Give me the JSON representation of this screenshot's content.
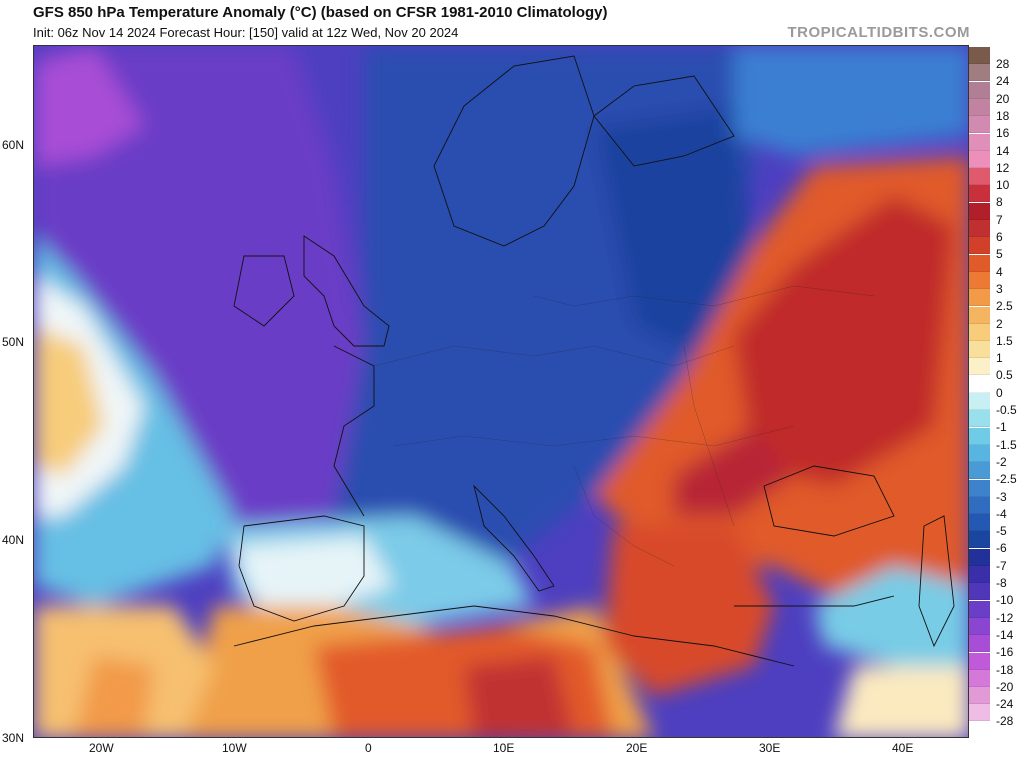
{
  "header": {
    "title": "GFS 850 hPa Temperature Anomaly (°C) (based on CFSR 1981-2010 Climatology)",
    "subtitle": "Init: 06z Nov 14 2024   Forecast Hour: [150]   valid at 12z Wed, Nov 20 2024",
    "brand": "TROPICALTIDBITS.COM"
  },
  "axes": {
    "lat_labels": [
      "60N",
      "50N",
      "40N",
      "30N"
    ],
    "lon_labels": [
      "20W",
      "10W",
      "0",
      "10E",
      "20E",
      "30E",
      "40E"
    ]
  },
  "colorbar": {
    "labels": [
      "28",
      "24",
      "20",
      "18",
      "16",
      "14",
      "12",
      "10",
      "8",
      "7",
      "6",
      "5",
      "4",
      "3",
      "2.5",
      "2",
      "1.5",
      "1",
      "0.5",
      "0",
      "-0.5",
      "-1",
      "-1.5",
      "-2",
      "-2.5",
      "-3",
      "-4",
      "-5",
      "-6",
      "-7",
      "-8",
      "-10",
      "-12",
      "-14",
      "-16",
      "-18",
      "-20",
      "-24",
      "-28"
    ],
    "colors": [
      "#7a5a4a",
      "#a07d80",
      "#b07f96",
      "#c283a3",
      "#d28ab2",
      "#e08fba",
      "#ec8fba",
      "#e05a6e",
      "#c8303c",
      "#b01f2a",
      "#c03030",
      "#d2402a",
      "#e05a2a",
      "#ec7a34",
      "#f29a48",
      "#f5b460",
      "#f7cc7a",
      "#f8e09c",
      "#fbf0c8",
      "#ffffff",
      "#c8f0f4",
      "#98e0ec",
      "#70cce6",
      "#58b4e0",
      "#4a9ad6",
      "#3f82cc",
      "#306cc0",
      "#2458b2",
      "#1a46a0",
      "#22309a",
      "#3a2fa8",
      "#5036b8",
      "#6a3ec6",
      "#8a46d0",
      "#a84ed6",
      "#c05ad8",
      "#d478da",
      "#e29ad6",
      "#efbce6"
    ]
  },
  "map": {
    "description_colors": {
      "cold_core": "#5546c8",
      "cold_mid": "#2a56b4",
      "cold_edge": "#54a6dc",
      "neutral": "#ffffff",
      "warm_edge": "#f6c87a",
      "warm_mid": "#e8622e",
      "warm_core": "#b82a30"
    }
  }
}
